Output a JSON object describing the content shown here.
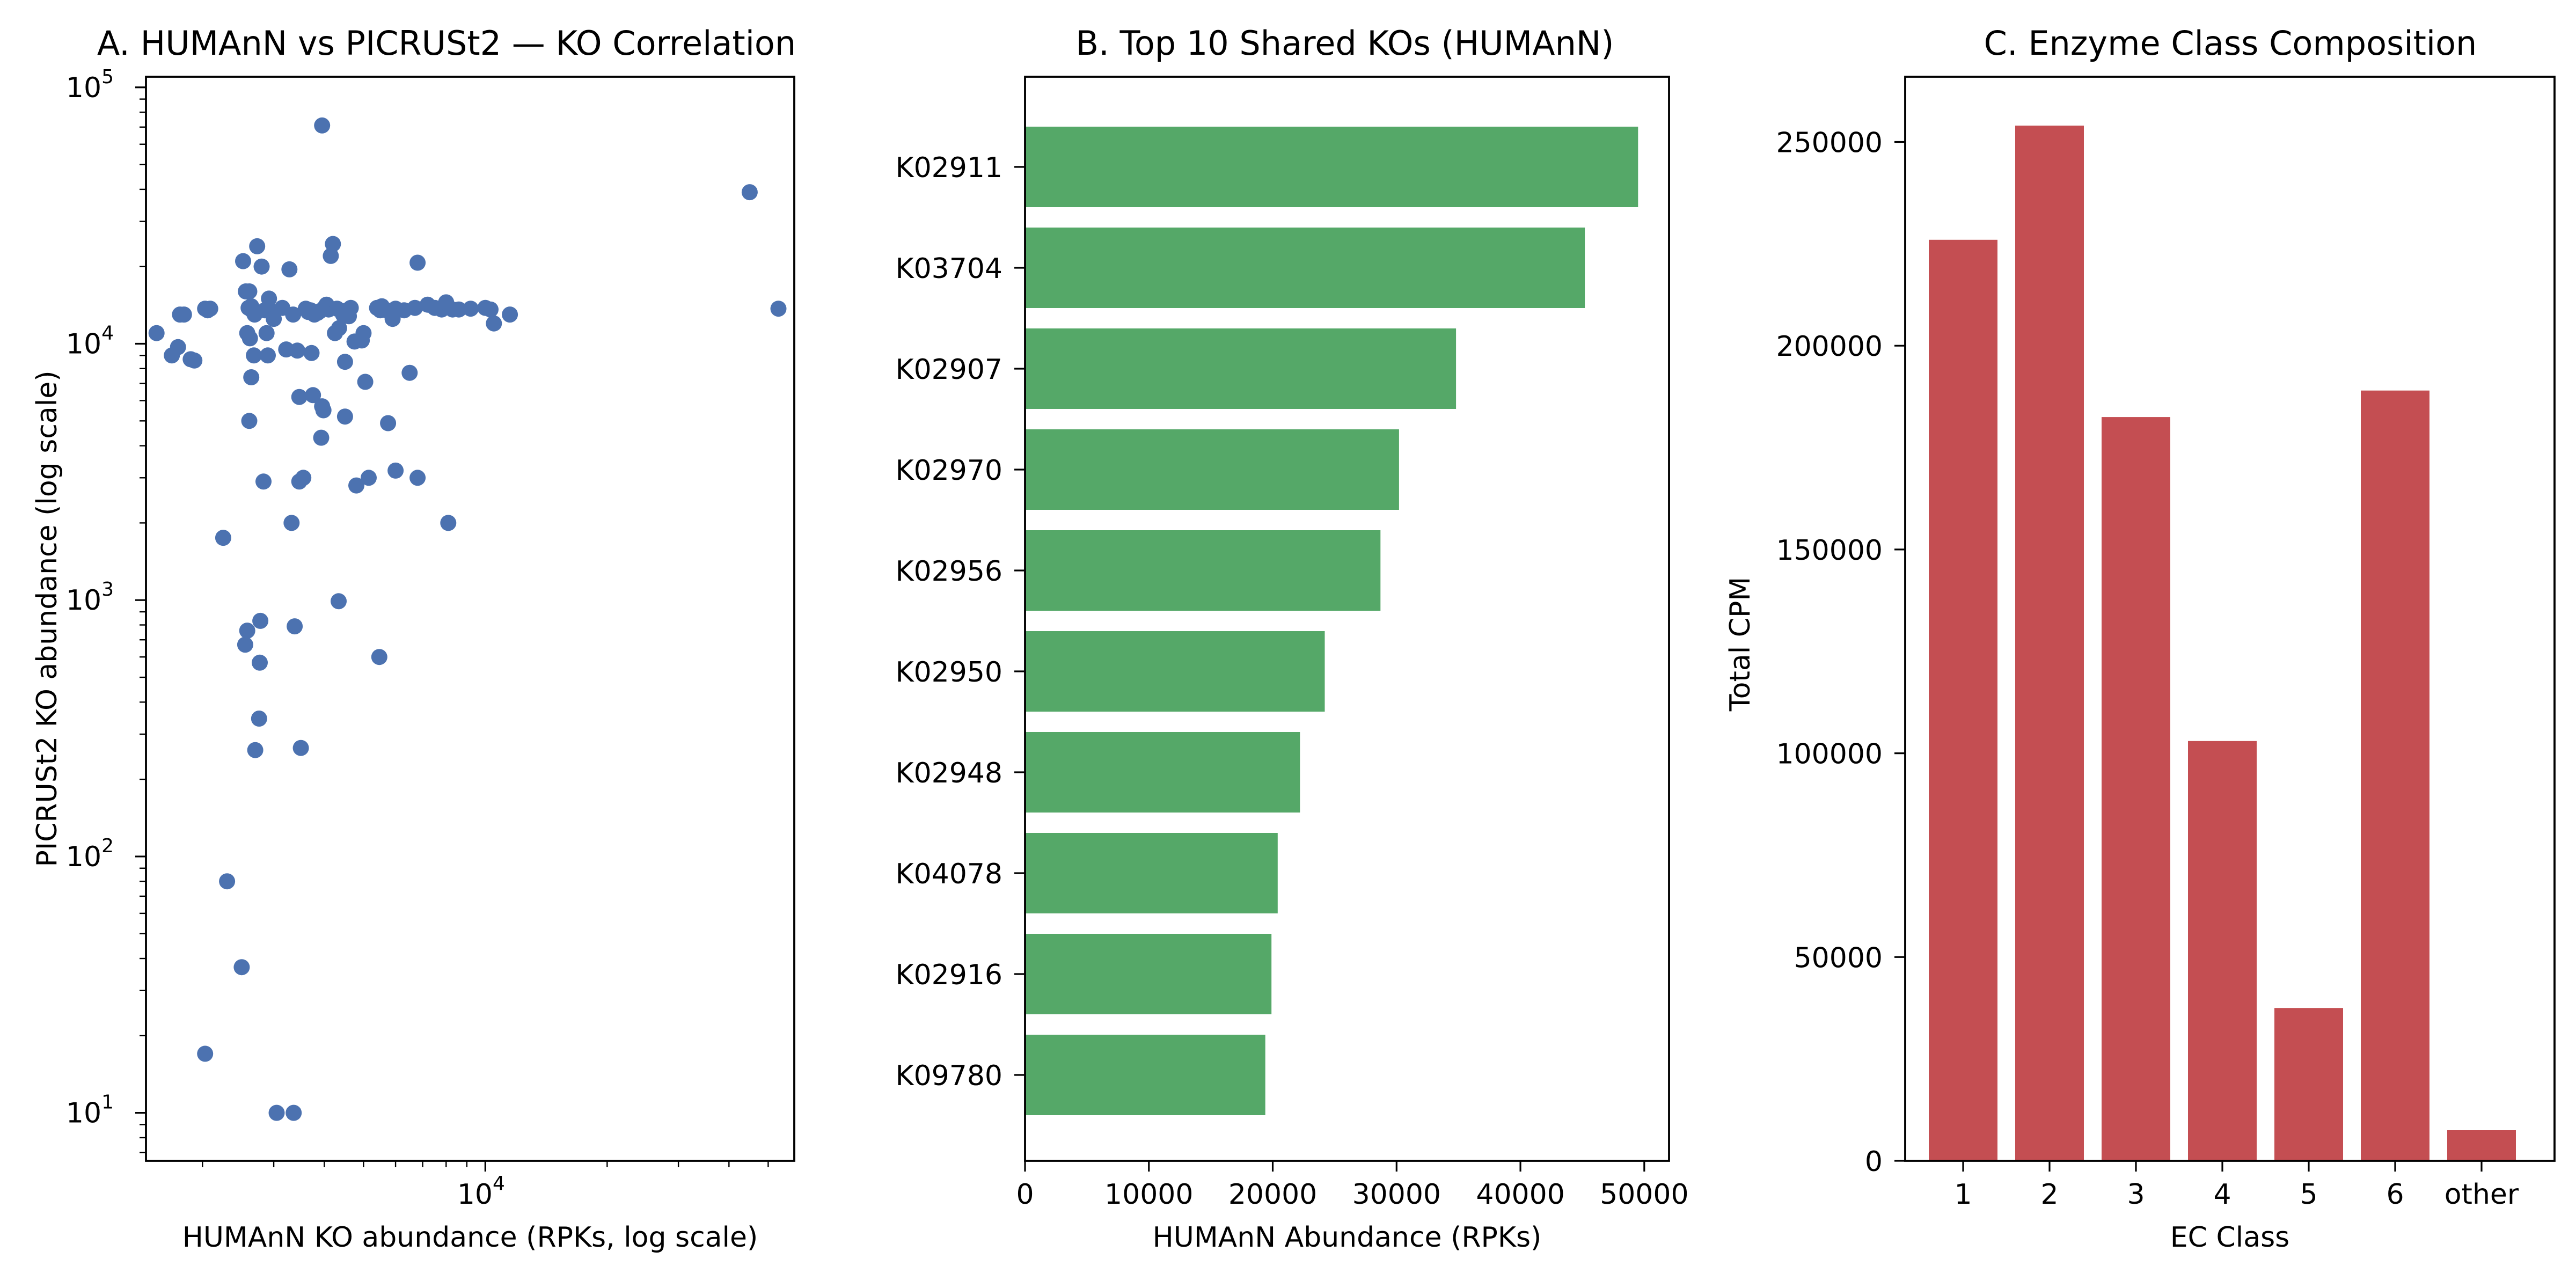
{
  "colors": {
    "scatter": "#4c72b0",
    "bar_h": "#55a868",
    "bar_v": "#c44e52"
  },
  "chart_data": [
    {
      "type": "scatter",
      "title": "A. HUMAnN vs PICRUSt2 — KO Correlation",
      "xlabel": "HUMAnN KO abundance (RPKs, log scale)",
      "ylabel": "PICRUSt2 KO abundance (log scale)",
      "xscale": "log",
      "yscale": "log",
      "xlim": [
        1450,
        58000
      ],
      "ylim": [
        6.5,
        110000
      ],
      "xticks": [
        {
          "value": 10000,
          "base": "10",
          "exp": "4"
        }
      ],
      "yticks": [
        {
          "value": 10,
          "base": "10",
          "exp": "1"
        },
        {
          "value": 100,
          "base": "10",
          "exp": "2"
        },
        {
          "value": 1000,
          "base": "10",
          "exp": "3"
        },
        {
          "value": 10000,
          "base": "10",
          "exp": "4"
        },
        {
          "value": 100000,
          "base": "10",
          "exp": "5"
        }
      ],
      "grid": false,
      "points": [
        [
          1540,
          11000
        ],
        [
          1680,
          9000
        ],
        [
          1740,
          9700
        ],
        [
          1760,
          13000
        ],
        [
          1800,
          13000
        ],
        [
          1870,
          8700
        ],
        [
          1910,
          8600
        ],
        [
          2030,
          13700
        ],
        [
          2060,
          13500
        ],
        [
          2090,
          13700
        ],
        [
          2030,
          17
        ],
        [
          2520,
          21000
        ],
        [
          2560,
          16000
        ],
        [
          2580,
          11000
        ],
        [
          2600,
          13800
        ],
        [
          2610,
          16000
        ],
        [
          2620,
          10500
        ],
        [
          2640,
          14000
        ],
        [
          2650,
          13500
        ],
        [
          2680,
          9000
        ],
        [
          2640,
          7400
        ],
        [
          2610,
          5000
        ],
        [
          2690,
          13000
        ],
        [
          2730,
          24000
        ],
        [
          2800,
          20000
        ],
        [
          2850,
          13500
        ],
        [
          2880,
          11000
        ],
        [
          2900,
          13600
        ],
        [
          2920,
          15000
        ],
        [
          2830,
          2900
        ],
        [
          2900,
          9000
        ],
        [
          2950,
          13400
        ],
        [
          3000,
          12500
        ],
        [
          3150,
          13800
        ],
        [
          3220,
          9500
        ],
        [
          3280,
          19500
        ],
        [
          3350,
          13000
        ],
        [
          3430,
          9400
        ],
        [
          3470,
          6200
        ],
        [
          3320,
          2000
        ],
        [
          3470,
          2900
        ],
        [
          3550,
          3000
        ],
        [
          3600,
          13700
        ],
        [
          3650,
          13300
        ],
        [
          3700,
          13500
        ],
        [
          3720,
          9200
        ],
        [
          3750,
          6300
        ],
        [
          3780,
          13000
        ],
        [
          3850,
          13200
        ],
        [
          3900,
          13400
        ],
        [
          3950,
          5700
        ],
        [
          3930,
          4300
        ],
        [
          3980,
          5500
        ],
        [
          4000,
          13800
        ],
        [
          4050,
          14200
        ],
        [
          4100,
          13600
        ],
        [
          4150,
          22000
        ],
        [
          4200,
          24500
        ],
        [
          4250,
          11000
        ],
        [
          4300,
          13700
        ],
        [
          4350,
          11500
        ],
        [
          4450,
          13000
        ],
        [
          4500,
          8500
        ],
        [
          4550,
          13500
        ],
        [
          4600,
          12800
        ],
        [
          4650,
          13800
        ],
        [
          4500,
          5200
        ],
        [
          4750,
          10200
        ],
        [
          4800,
          2800
        ],
        [
          4950,
          10300
        ],
        [
          5000,
          11000
        ],
        [
          5050,
          7100
        ],
        [
          5150,
          3000
        ],
        [
          5400,
          13800
        ],
        [
          5500,
          13500
        ],
        [
          5550,
          14000
        ],
        [
          5700,
          13500
        ],
        [
          5750,
          4900
        ],
        [
          5900,
          12500
        ],
        [
          6000,
          13700
        ],
        [
          6000,
          3200
        ],
        [
          6300,
          13500
        ],
        [
          6500,
          7700
        ],
        [
          6700,
          13800
        ],
        [
          6800,
          20700
        ],
        [
          6800,
          3000
        ],
        [
          7200,
          14200
        ],
        [
          7500,
          13800
        ],
        [
          7800,
          13600
        ],
        [
          8000,
          14500
        ],
        [
          8300,
          13600
        ],
        [
          8100,
          2000
        ],
        [
          8600,
          13600
        ],
        [
          9200,
          13700
        ],
        [
          10000,
          13800
        ],
        [
          10300,
          13600
        ],
        [
          10500,
          12000
        ],
        [
          11500,
          13000
        ],
        [
          45000,
          39000
        ],
        [
          53000,
          13700
        ],
        [
          3950,
          71000
        ],
        [
          2250,
          1750
        ],
        [
          2580,
          760
        ],
        [
          2780,
          830
        ],
        [
          3380,
          790
        ],
        [
          4340,
          990
        ],
        [
          5470,
          600
        ],
        [
          2300,
          80
        ],
        [
          2500,
          37
        ],
        [
          2550,
          670
        ],
        [
          2770,
          570
        ],
        [
          2760,
          345
        ],
        [
          2700,
          260
        ],
        [
          3500,
          265
        ],
        [
          3050,
          10
        ],
        [
          3360,
          10
        ]
      ]
    },
    {
      "type": "bar",
      "orientation": "horizontal",
      "title": "B. Top 10 Shared KOs (HUMAnN)",
      "xlabel": "HUMAnN Abundance (RPKs)",
      "ylabel": "",
      "xlim": [
        0,
        52000
      ],
      "xticks": [
        0,
        10000,
        20000,
        30000,
        40000,
        50000
      ],
      "grid": false,
      "categories": [
        "K02911",
        "K03704",
        "K02907",
        "K02970",
        "K02956",
        "K02950",
        "K02948",
        "K04078",
        "K02916",
        "K09780"
      ],
      "values": [
        49500,
        45200,
        34800,
        30200,
        28700,
        24200,
        22200,
        20400,
        19900,
        19400
      ]
    },
    {
      "type": "bar",
      "orientation": "vertical",
      "title": "C. Enzyme Class Composition",
      "xlabel": "EC Class",
      "ylabel": "Total CPM",
      "ylim": [
        0,
        266000
      ],
      "yticks": [
        0,
        50000,
        100000,
        150000,
        200000,
        250000
      ],
      "grid": false,
      "categories": [
        "1",
        "2",
        "3",
        "4",
        "5",
        "6",
        "other"
      ],
      "values": [
        226000,
        254000,
        182500,
        103000,
        37500,
        189000,
        7500
      ]
    }
  ]
}
